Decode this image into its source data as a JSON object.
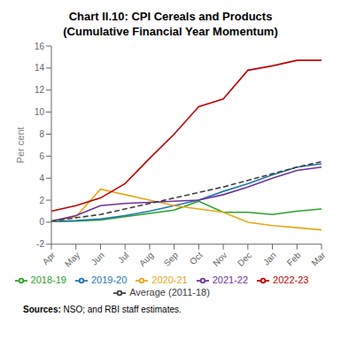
{
  "chart_data": {
    "type": "line",
    "title": "Chart II.10: CPI Cereals and Products",
    "subtitle": "(Cumulative Financial Year Momentum)",
    "y_label": "Per cent",
    "categories": [
      "Apr",
      "May",
      "Jun",
      "Jul",
      "Aug",
      "Sep",
      "Oct",
      "Nov",
      "Dec",
      "Jan",
      "Feb",
      "Mar"
    ],
    "ylim": [
      -2,
      16
    ],
    "yticks": [
      -2,
      0,
      2,
      4,
      6,
      8,
      10,
      12,
      14,
      16
    ],
    "grid": false,
    "legend": "bottom",
    "series": [
      {
        "name": "2018-19",
        "color": "#2ca02c",
        "line_style": "solid",
        "values": [
          0.05,
          0.1,
          0.2,
          0.5,
          0.8,
          1.1,
          1.9,
          0.9,
          0.9,
          0.7,
          1.0,
          1.2
        ]
      },
      {
        "name": "2019-20",
        "color": "#1f77b4",
        "line_style": "solid",
        "values": [
          0.05,
          0.15,
          0.3,
          0.6,
          1.0,
          1.5,
          2.0,
          2.8,
          3.5,
          4.3,
          5.0,
          5.3
        ]
      },
      {
        "name": "2020-21",
        "color": "#e6a817",
        "line_style": "solid",
        "values": [
          0.05,
          0.5,
          3.0,
          2.5,
          2.0,
          1.5,
          1.2,
          0.9,
          0.0,
          -0.3,
          -0.5,
          -0.7
        ]
      },
      {
        "name": "2021-22",
        "color": "#7030a0",
        "line_style": "solid",
        "values": [
          0.1,
          0.6,
          1.5,
          1.7,
          1.8,
          1.9,
          2.0,
          2.5,
          3.2,
          4.0,
          4.7,
          5.0
        ]
      },
      {
        "name": "2022-23",
        "color": "#c00000",
        "line_style": "solid",
        "values": [
          1.0,
          1.5,
          2.2,
          3.5,
          5.8,
          8.0,
          10.5,
          11.2,
          13.8,
          14.2,
          14.7,
          14.7
        ]
      },
      {
        "name": "Average (2011-18)",
        "color": "#404040",
        "line_style": "dashed",
        "values": [
          0.1,
          0.4,
          0.7,
          1.2,
          1.7,
          2.2,
          2.7,
          3.2,
          3.8,
          4.4,
          5.0,
          5.5
        ]
      }
    ],
    "annotations": [
      "Sources:",
      "NSO; and RBI staff estimates."
    ]
  }
}
